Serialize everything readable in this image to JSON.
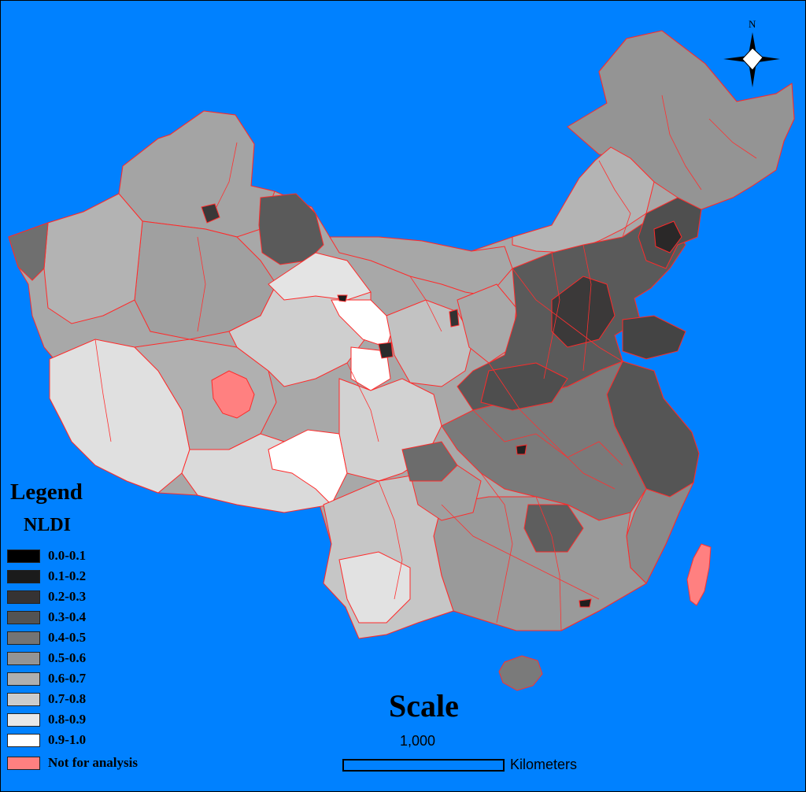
{
  "legend": {
    "title": "Legend",
    "subtitle": "NLDI",
    "items": [
      {
        "label": "0.0-0.1",
        "color": "#000000"
      },
      {
        "label": "0.1-0.2",
        "color": "#1b1b1b"
      },
      {
        "label": "0.2-0.3",
        "color": "#363333"
      },
      {
        "label": "0.3-0.4",
        "color": "#535353"
      },
      {
        "label": "0.4-0.5",
        "color": "#747474"
      },
      {
        "label": "0.5-0.6",
        "color": "#949494"
      },
      {
        "label": "0.6-0.7",
        "color": "#afafaf"
      },
      {
        "label": "0.7-0.8",
        "color": "#cccccc"
      },
      {
        "label": "0.8-0.9",
        "color": "#e8e8e8"
      },
      {
        "label": "0.9-1.0",
        "color": "#ffffff"
      },
      {
        "label": "Not for analysis",
        "color": "#ff8080"
      }
    ]
  },
  "scale": {
    "title": "Scale",
    "value": "1,000",
    "unit": "Kilometers"
  },
  "north_arrow": {
    "label": "N",
    "icon": "north-arrow-icon"
  },
  "colors": {
    "water": "#0081ff",
    "boundary": "#ff2020",
    "not_for_analysis": "#ff8080"
  }
}
